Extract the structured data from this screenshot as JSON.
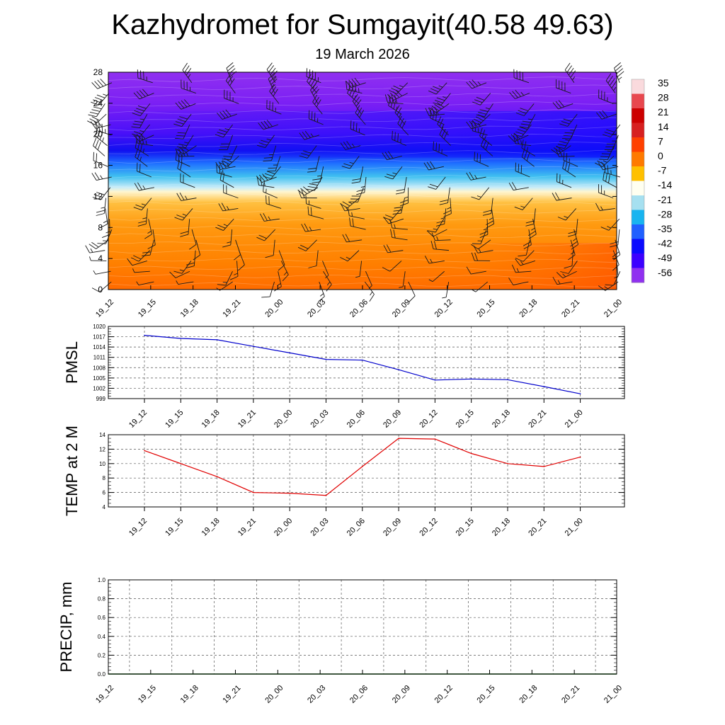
{
  "title": "Kazhydromet for Sumgayit(40.58 49.63)",
  "subtitle": "19 March 2026",
  "chart_data": [
    {
      "type": "heatmap",
      "name": "temperature-wind-cross-section",
      "x": [
        "19_12",
        "19_15",
        "19_18",
        "19_21",
        "20_00",
        "20_03",
        "20_06",
        "20_09",
        "20_12",
        "20_15",
        "20_18",
        "20_21",
        "21_00"
      ],
      "yticks": [
        0,
        4,
        8,
        12,
        16,
        20,
        24,
        28
      ],
      "ylim": [
        0,
        28
      ],
      "colorbar": {
        "labels": [
          "35",
          "28",
          "21",
          "14",
          "7",
          "0",
          "-7",
          "-14",
          "-21",
          "-28",
          "-35",
          "-42",
          "-49",
          "-56"
        ],
        "colors": [
          "#fadadd",
          "#e8474e",
          "#cc0000",
          "#d72020",
          "#ff4000",
          "#ff7a00",
          "#ffc000",
          "#fffff0",
          "#a6e0f0",
          "#18b4f0",
          "#2060ff",
          "#0a0aff",
          "#3c00ff",
          "#9030f0"
        ]
      },
      "wind_barbs": true
    },
    {
      "type": "line",
      "name": "pmsl",
      "ylabel": "PMSL",
      "x": [
        "19_12",
        "19_15",
        "19_18",
        "19_21",
        "20_00",
        "20_03",
        "20_06",
        "20_09",
        "20_12",
        "20_15",
        "20_18",
        "20_21",
        "21_00"
      ],
      "values": [
        1017.4,
        1016.5,
        1016.1,
        1014.2,
        1012.3,
        1010.4,
        1010.2,
        1007.4,
        1004.4,
        1004.7,
        1004.5,
        1002.5,
        1000.4
      ],
      "yticks": [
        "999",
        "1002",
        "1005",
        "1008",
        "1011",
        "1014",
        "1017",
        "1020"
      ],
      "ylim": [
        999,
        1020
      ],
      "color": "#0000cc"
    },
    {
      "type": "line",
      "name": "temp-2m",
      "ylabel": "TEMP at 2 M",
      "x": [
        "19_12",
        "19_15",
        "19_18",
        "19_21",
        "20_00",
        "20_03",
        "20_06",
        "20_09",
        "20_12",
        "20_15",
        "20_18",
        "20_21",
        "21_00"
      ],
      "values": [
        11.8,
        10.0,
        8.2,
        6.0,
        5.9,
        5.6,
        9.6,
        13.5,
        13.4,
        11.4,
        10.0,
        9.6,
        10.9
      ],
      "yticks": [
        "4",
        "6",
        "8",
        "10",
        "12",
        "14"
      ],
      "ylim": [
        4,
        14
      ],
      "color": "#e00000"
    },
    {
      "type": "line",
      "name": "precip",
      "ylabel": "PRECIP, mm",
      "x": [
        "19_12",
        "19_15",
        "19_18",
        "19_21",
        "20_00",
        "20_03",
        "20_06",
        "20_09",
        "20_12",
        "20_15",
        "20_18",
        "20_21",
        "21_00"
      ],
      "values": [
        0,
        0,
        0,
        0,
        0,
        0,
        0,
        0,
        0,
        0,
        0,
        0,
        0
      ],
      "yticks": [
        "0.0",
        "0.2",
        "0.4",
        "0.6",
        "0.8",
        "1.0"
      ],
      "ylim": [
        0,
        1
      ],
      "color": "#006400"
    }
  ]
}
